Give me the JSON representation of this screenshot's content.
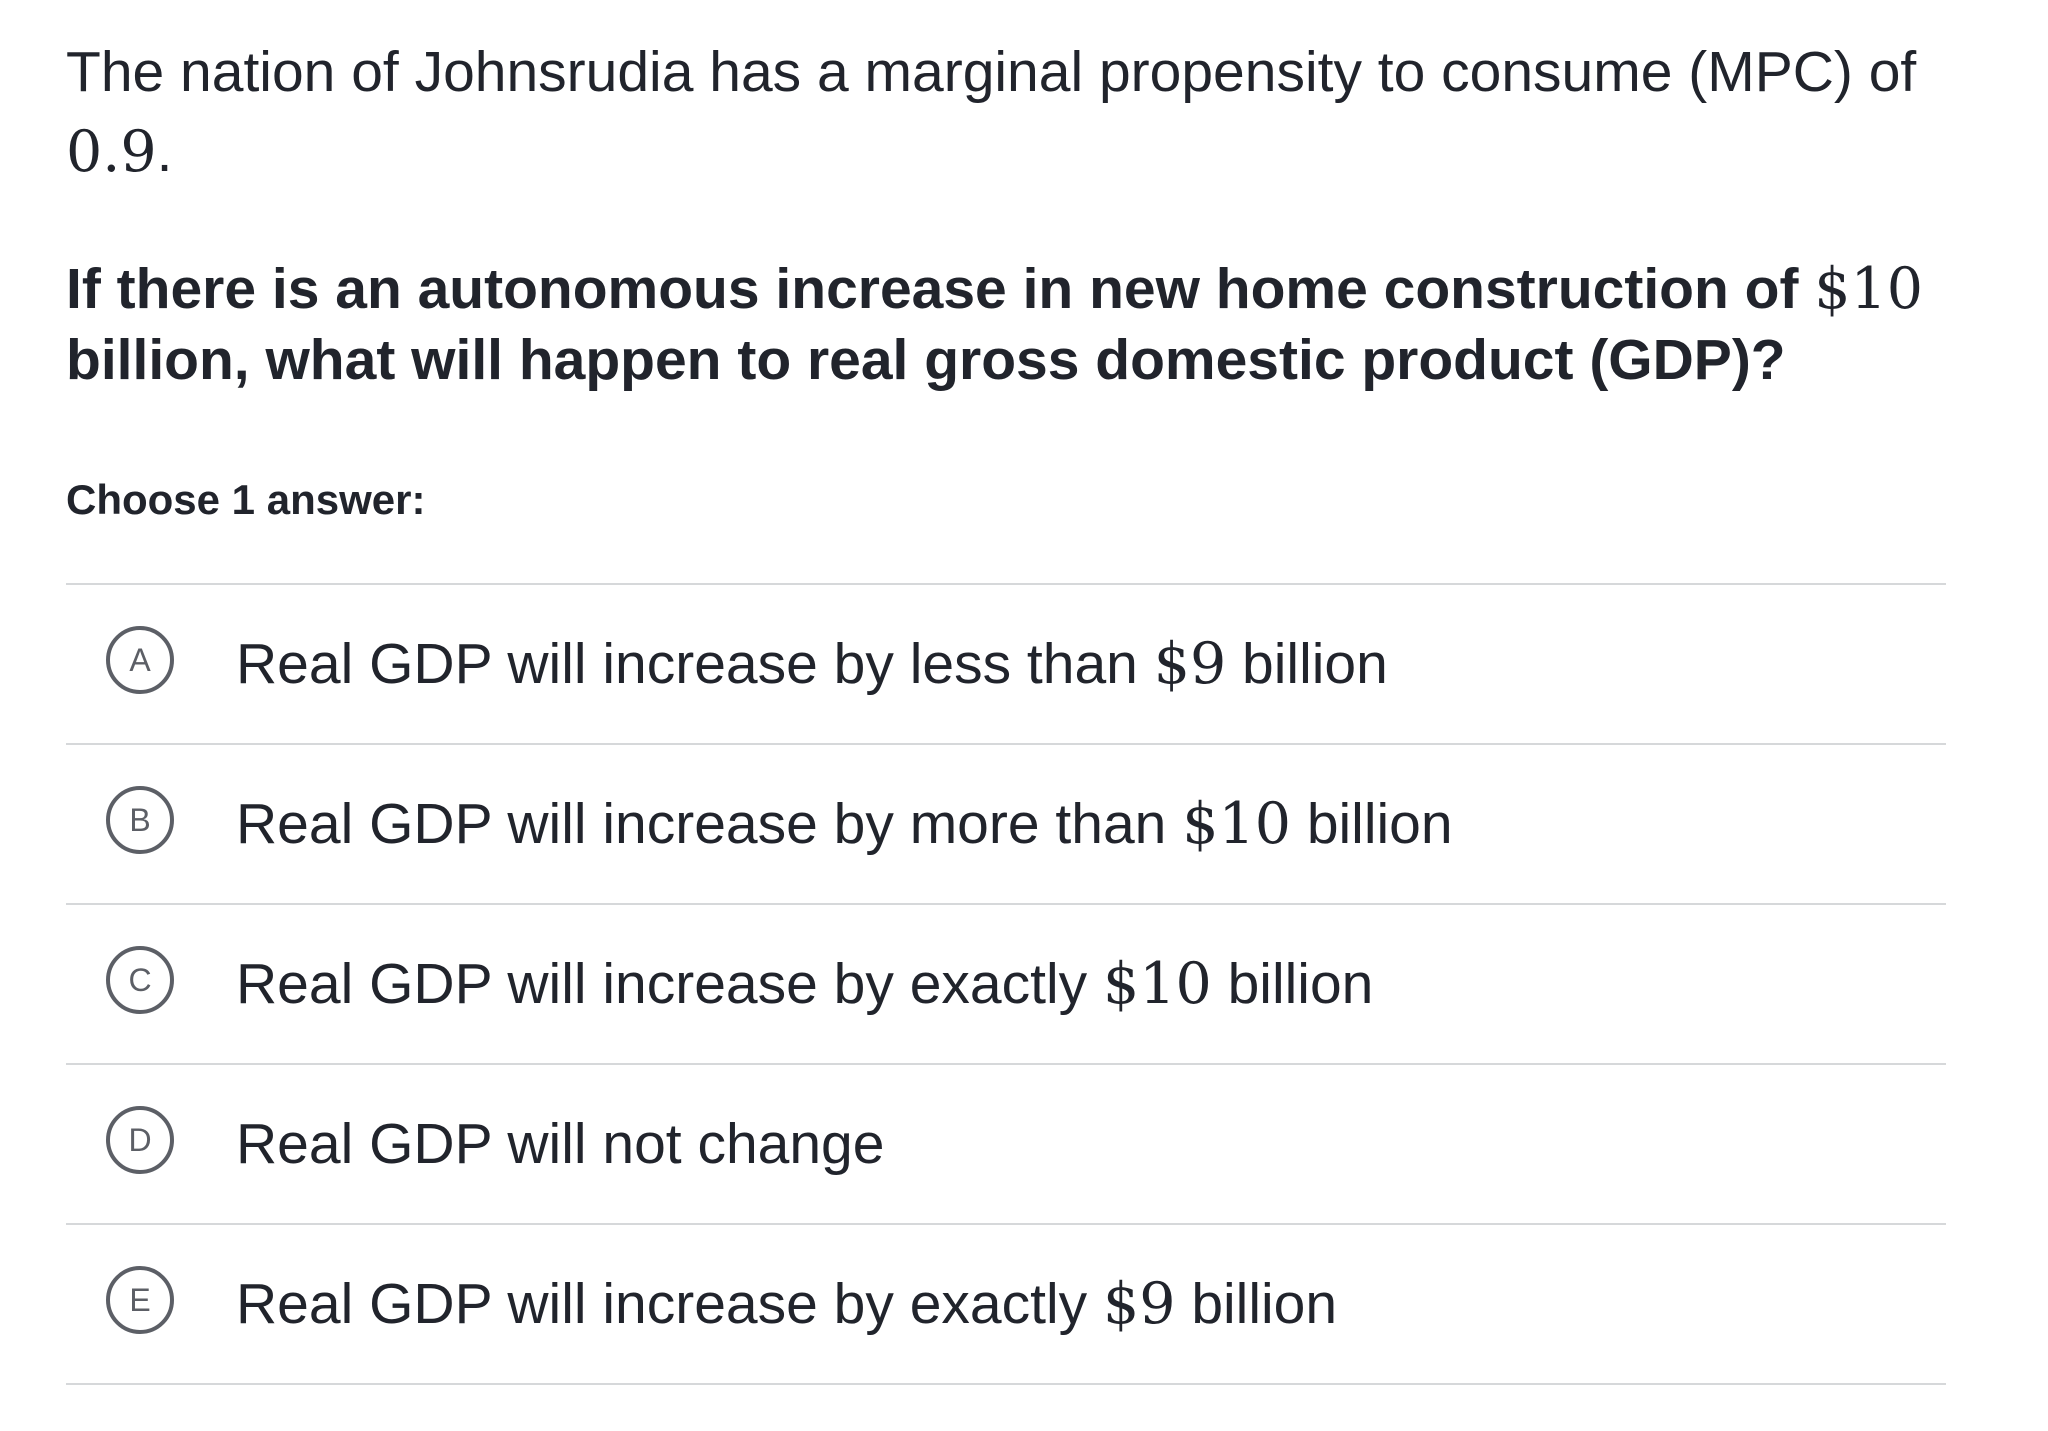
{
  "intro": {
    "text_before": "The nation of Johnsrudia has a marginal propensity to consume (MPC) of ",
    "mpc_value": "0.9",
    "text_after": "."
  },
  "question": {
    "text_before": "If there is an autonomous increase in new home construction of ",
    "amount": "$10",
    "text_after": " billion, what will happen to real gross domestic product (GDP)?"
  },
  "choose_label": "Choose 1 answer:",
  "choices": [
    {
      "letter": "A",
      "text_before": "Real GDP will increase by less than ",
      "amount": "$9",
      "text_after": " billion"
    },
    {
      "letter": "B",
      "text_before": "Real GDP will increase by more than ",
      "amount": "$10",
      "text_after": " billion"
    },
    {
      "letter": "C",
      "text_before": "Real GDP will increase by exactly ",
      "amount": "$10",
      "text_after": " billion"
    },
    {
      "letter": "D",
      "text_before": "Real GDP will not change",
      "amount": "",
      "text_after": ""
    },
    {
      "letter": "E",
      "text_before": "Real GDP will increase by exactly ",
      "amount": "$9",
      "text_after": " billion"
    }
  ]
}
